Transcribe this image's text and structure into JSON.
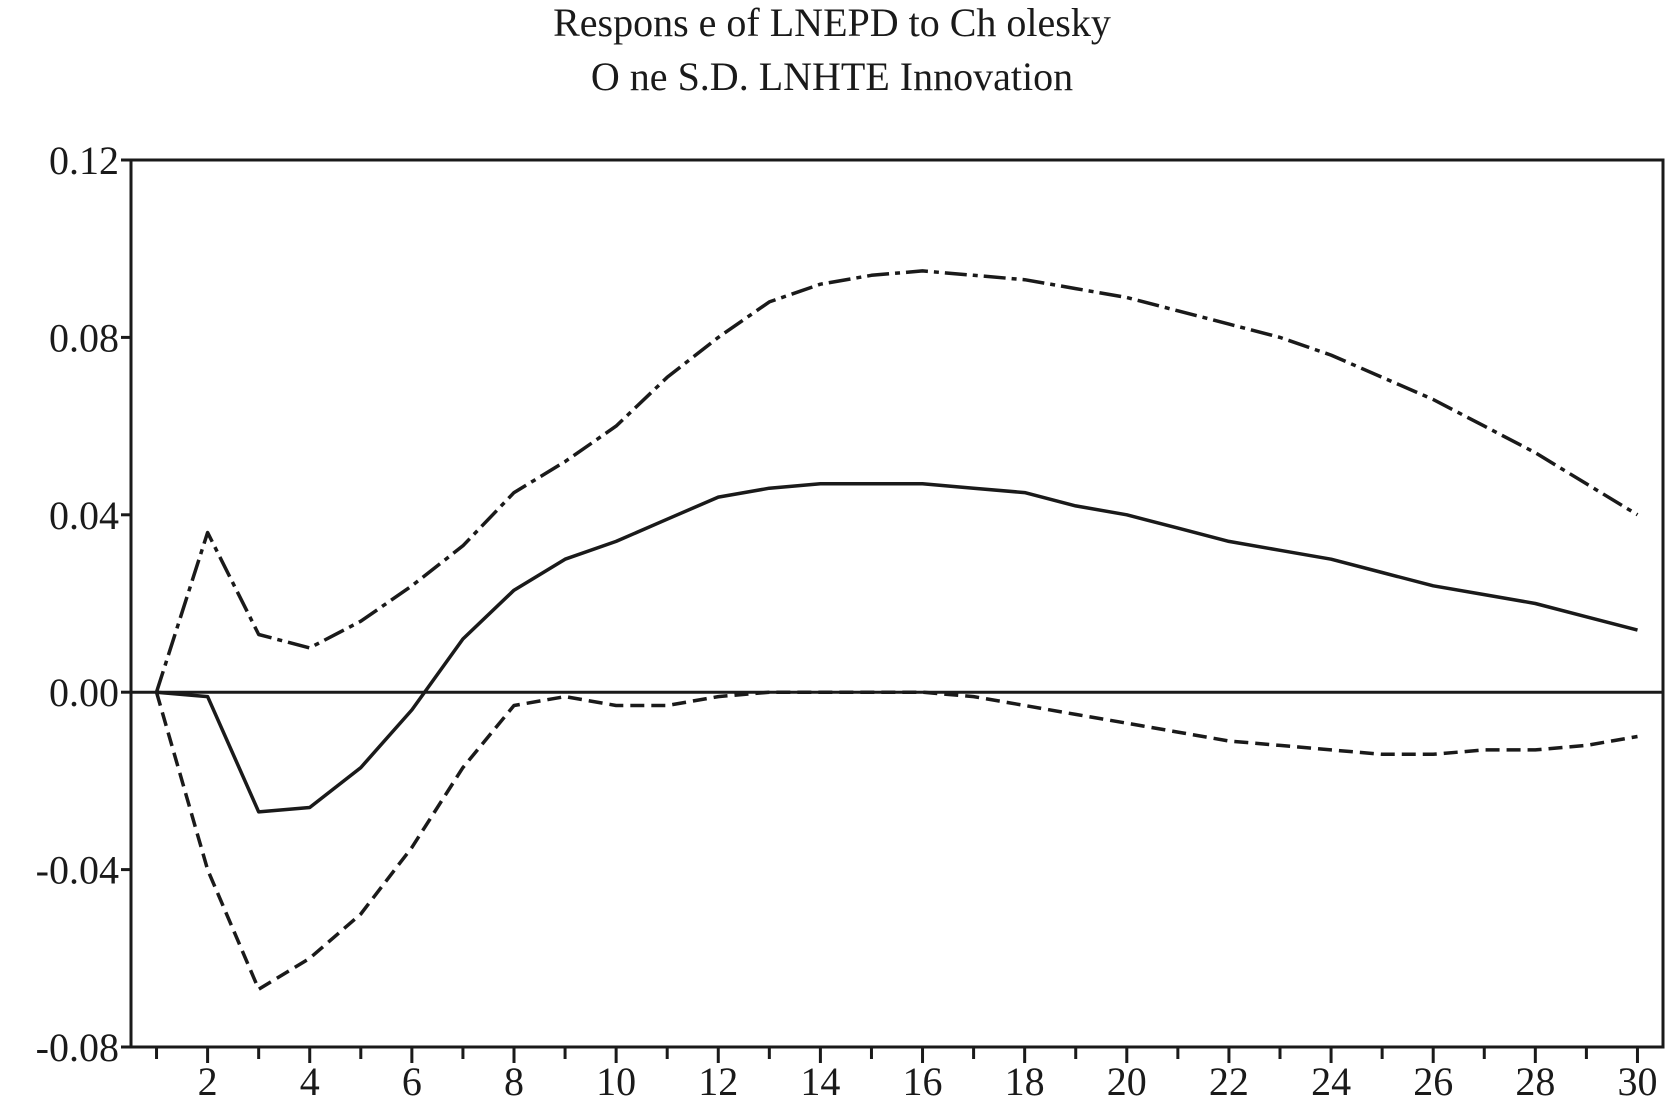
{
  "chart_data": {
    "type": "line",
    "title": "Respons e of LNEPD to Ch olesky",
    "subtitle": "O ne S.D. LNHTE Innovation",
    "xlabel": "",
    "ylabel": "",
    "xlim": [
      0.5,
      30.5
    ],
    "ylim": [
      -0.08,
      0.12
    ],
    "x_ticks": [
      2,
      4,
      6,
      8,
      10,
      12,
      14,
      16,
      18,
      20,
      22,
      24,
      26,
      28,
      30
    ],
    "x_tick_labels": [
      "2",
      "4",
      "6",
      "8",
      "10",
      "12",
      "14",
      "16",
      "18",
      "20",
      "22",
      "24",
      "26",
      "28",
      "30"
    ],
    "y_ticks": [
      0.12,
      0.08,
      0.04,
      0.0,
      -0.04,
      -0.08
    ],
    "y_tick_labels": [
      "0.12",
      "0.08",
      "0.04",
      "0.00",
      "-0.04",
      "-0.08"
    ],
    "grid": false,
    "legend": "none",
    "zero_line": true,
    "x": [
      1,
      2,
      3,
      4,
      5,
      6,
      7,
      8,
      9,
      10,
      11,
      12,
      13,
      14,
      15,
      16,
      17,
      18,
      19,
      20,
      21,
      22,
      23,
      24,
      25,
      26,
      27,
      28,
      29,
      30
    ],
    "series": [
      {
        "style": "solid",
        "color": "#1a1a1a",
        "values": [
          0.0,
          -0.001,
          -0.027,
          -0.026,
          -0.017,
          -0.004,
          0.012,
          0.023,
          0.03,
          0.034,
          0.039,
          0.044,
          0.046,
          0.047,
          0.047,
          0.047,
          0.046,
          0.045,
          0.042,
          0.04,
          0.037,
          0.034,
          0.032,
          0.03,
          0.027,
          0.024,
          0.022,
          0.02,
          0.017,
          0.014
        ]
      },
      {
        "style": "dash-dot",
        "color": "#1a1a1a",
        "values": [
          0.0,
          0.036,
          0.013,
          0.01,
          0.016,
          0.024,
          0.033,
          0.045,
          0.052,
          0.06,
          0.071,
          0.08,
          0.088,
          0.092,
          0.094,
          0.095,
          0.094,
          0.093,
          0.091,
          0.089,
          0.086,
          0.083,
          0.08,
          0.076,
          0.071,
          0.066,
          0.06,
          0.054,
          0.047,
          0.04
        ]
      },
      {
        "style": "dashed",
        "color": "#1a1a1a",
        "values": [
          0.0,
          -0.04,
          -0.067,
          -0.06,
          -0.05,
          -0.035,
          -0.017,
          -0.003,
          -0.001,
          -0.003,
          -0.003,
          -0.001,
          0.0,
          0.0,
          0.0,
          0.0,
          -0.001,
          -0.003,
          -0.005,
          -0.007,
          -0.009,
          -0.011,
          -0.012,
          -0.013,
          -0.014,
          -0.014,
          -0.013,
          -0.013,
          -0.012,
          -0.01
        ]
      }
    ]
  }
}
